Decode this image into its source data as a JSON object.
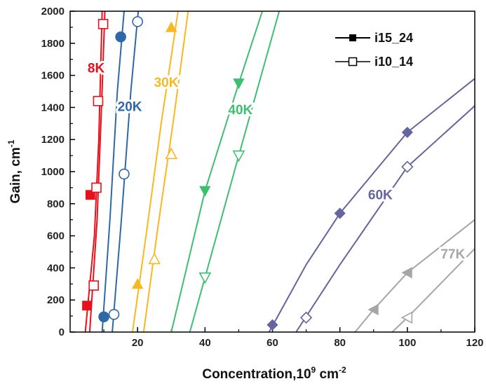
{
  "chart_data": {
    "type": "line",
    "xlabel": "Concentration,10",
    "xlabel_sup": "9",
    "xlabel_unit": " cm",
    "xlabel_unit_sup": "-2",
    "ylabel": "Gain, cm",
    "ylabel_sup": "-1",
    "xlim": [
      0,
      120
    ],
    "ylim": [
      0,
      2000
    ],
    "x_ticks": [
      "20",
      "40",
      "60",
      "80",
      "100",
      "120"
    ],
    "y_ticks": [
      "0",
      "200",
      "400",
      "600",
      "800",
      "1000",
      "1200",
      "1400",
      "1600",
      "1800",
      "2000"
    ],
    "grid": false,
    "legend_position": "top-right",
    "legend": [
      {
        "label": "i15_24",
        "marker": "filled-square"
      },
      {
        "label": "i10_14",
        "marker": "open-square"
      }
    ],
    "series": [
      {
        "temperature": "8K",
        "sample": "i15_24",
        "color": "#e8101a",
        "marker": "square",
        "filled": true,
        "line": [
          [
            4.5,
            0
          ],
          [
            7.2,
            600
          ],
          [
            8.5,
            1200
          ],
          [
            9.5,
            2000
          ]
        ],
        "points": [
          [
            5,
            165
          ],
          [
            6,
            855
          ]
        ]
      },
      {
        "temperature": "8K",
        "sample": "i10_14",
        "color": "#e8101a",
        "marker": "square",
        "filled": false,
        "line": [
          [
            5.8,
            0
          ],
          [
            8,
            700
          ],
          [
            9.3,
            1400
          ],
          [
            10.3,
            2000
          ]
        ],
        "points": [
          [
            7,
            290
          ],
          [
            7.8,
            900
          ],
          [
            8.3,
            1440
          ],
          [
            9.8,
            1920
          ]
        ]
      },
      {
        "temperature": "20K",
        "sample": "i15_24",
        "color": "#2f68a6",
        "marker": "circle",
        "filled": true,
        "line": [
          [
            9.5,
            0
          ],
          [
            11.8,
            700
          ],
          [
            14,
            1500
          ],
          [
            16,
            2000
          ]
        ],
        "points": [
          [
            10,
            95
          ],
          [
            15,
            1840
          ]
        ]
      },
      {
        "temperature": "20K",
        "sample": "i10_14",
        "color": "#2f68a6",
        "marker": "circle",
        "filled": false,
        "line": [
          [
            12.5,
            0
          ],
          [
            15.2,
            700
          ],
          [
            18,
            1500
          ],
          [
            20.2,
            2000
          ]
        ],
        "points": [
          [
            13,
            110
          ],
          [
            16,
            985
          ],
          [
            20,
            1935
          ]
        ]
      },
      {
        "temperature": "30K",
        "sample": "i15_24",
        "color": "#f9b820",
        "marker": "triangle-up",
        "filled": true,
        "line": [
          [
            18.5,
            0
          ],
          [
            22.5,
            600
          ],
          [
            27,
            1300
          ],
          [
            32,
            2000
          ]
        ],
        "points": [
          [
            20,
            300
          ],
          [
            30,
            1900
          ]
        ]
      },
      {
        "temperature": "30K",
        "sample": "i10_14",
        "color": "#f9b820",
        "marker": "triangle-up",
        "filled": false,
        "line": [
          [
            21.8,
            0
          ],
          [
            26,
            650
          ],
          [
            30.5,
            1300
          ],
          [
            35,
            2000
          ]
        ],
        "points": [
          [
            25,
            455
          ],
          [
            30,
            1110
          ]
        ]
      },
      {
        "temperature": "40K",
        "sample": "i15_24",
        "color": "#3cc070",
        "marker": "triangle-down",
        "filled": true,
        "line": [
          [
            30,
            0
          ],
          [
            40,
            880
          ],
          [
            50,
            1550
          ],
          [
            57,
            2000
          ]
        ],
        "points": [
          [
            40,
            880
          ],
          [
            50,
            1550
          ]
        ]
      },
      {
        "temperature": "40K",
        "sample": "i10_14",
        "color": "#3cc070",
        "marker": "triangle-down",
        "filled": false,
        "line": [
          [
            35.5,
            0
          ],
          [
            40,
            340
          ],
          [
            50,
            1100
          ],
          [
            62,
            2000
          ]
        ],
        "points": [
          [
            40,
            340
          ],
          [
            50,
            1100
          ]
        ]
      },
      {
        "temperature": "60K",
        "sample": "i15_24",
        "color": "#6464a0",
        "marker": "diamond",
        "filled": true,
        "line": [
          [
            59,
            0
          ],
          [
            70,
            420
          ],
          [
            80,
            740
          ],
          [
            100,
            1245
          ],
          [
            120,
            1580
          ]
        ],
        "points": [
          [
            60,
            45
          ],
          [
            80,
            740
          ],
          [
            100,
            1245
          ]
        ]
      },
      {
        "temperature": "60K",
        "sample": "i10_14",
        "color": "#6464a0",
        "marker": "diamond",
        "filled": false,
        "line": [
          [
            67,
            0
          ],
          [
            80,
            420
          ],
          [
            100,
            1030
          ],
          [
            120,
            1410
          ]
        ],
        "points": [
          [
            70,
            90
          ],
          [
            100,
            1030
          ]
        ]
      },
      {
        "temperature": "77K",
        "sample": "i15_24",
        "color": "#a6a6a6",
        "marker": "triangle-left",
        "filled": true,
        "line": [
          [
            84.5,
            0
          ],
          [
            90,
            140
          ],
          [
            100,
            370
          ],
          [
            120,
            700
          ]
        ],
        "points": [
          [
            90,
            140
          ],
          [
            100,
            370
          ]
        ]
      },
      {
        "temperature": "77K",
        "sample": "i10_14",
        "color": "#a6a6a6",
        "marker": "triangle-left",
        "filled": false,
        "line": [
          [
            95.5,
            0
          ],
          [
            100,
            90
          ],
          [
            120,
            520
          ]
        ],
        "points": [
          [
            100,
            90
          ]
        ]
      }
    ],
    "temperature_labels": [
      {
        "text": "8K",
        "x": 7.7,
        "y": 1640,
        "color": "#e8101a"
      },
      {
        "text": "20K",
        "x": 17.7,
        "y": 1400,
        "color": "#2f68a6"
      },
      {
        "text": "30K",
        "x": 28.5,
        "y": 1550,
        "color": "#f9b820"
      },
      {
        "text": "40K",
        "x": 50.5,
        "y": 1380,
        "color": "#3cc070"
      },
      {
        "text": "60K",
        "x": 92,
        "y": 850,
        "color": "#6464a0"
      },
      {
        "text": "77K",
        "x": 113.5,
        "y": 480,
        "color": "#a6a6a6"
      }
    ]
  }
}
